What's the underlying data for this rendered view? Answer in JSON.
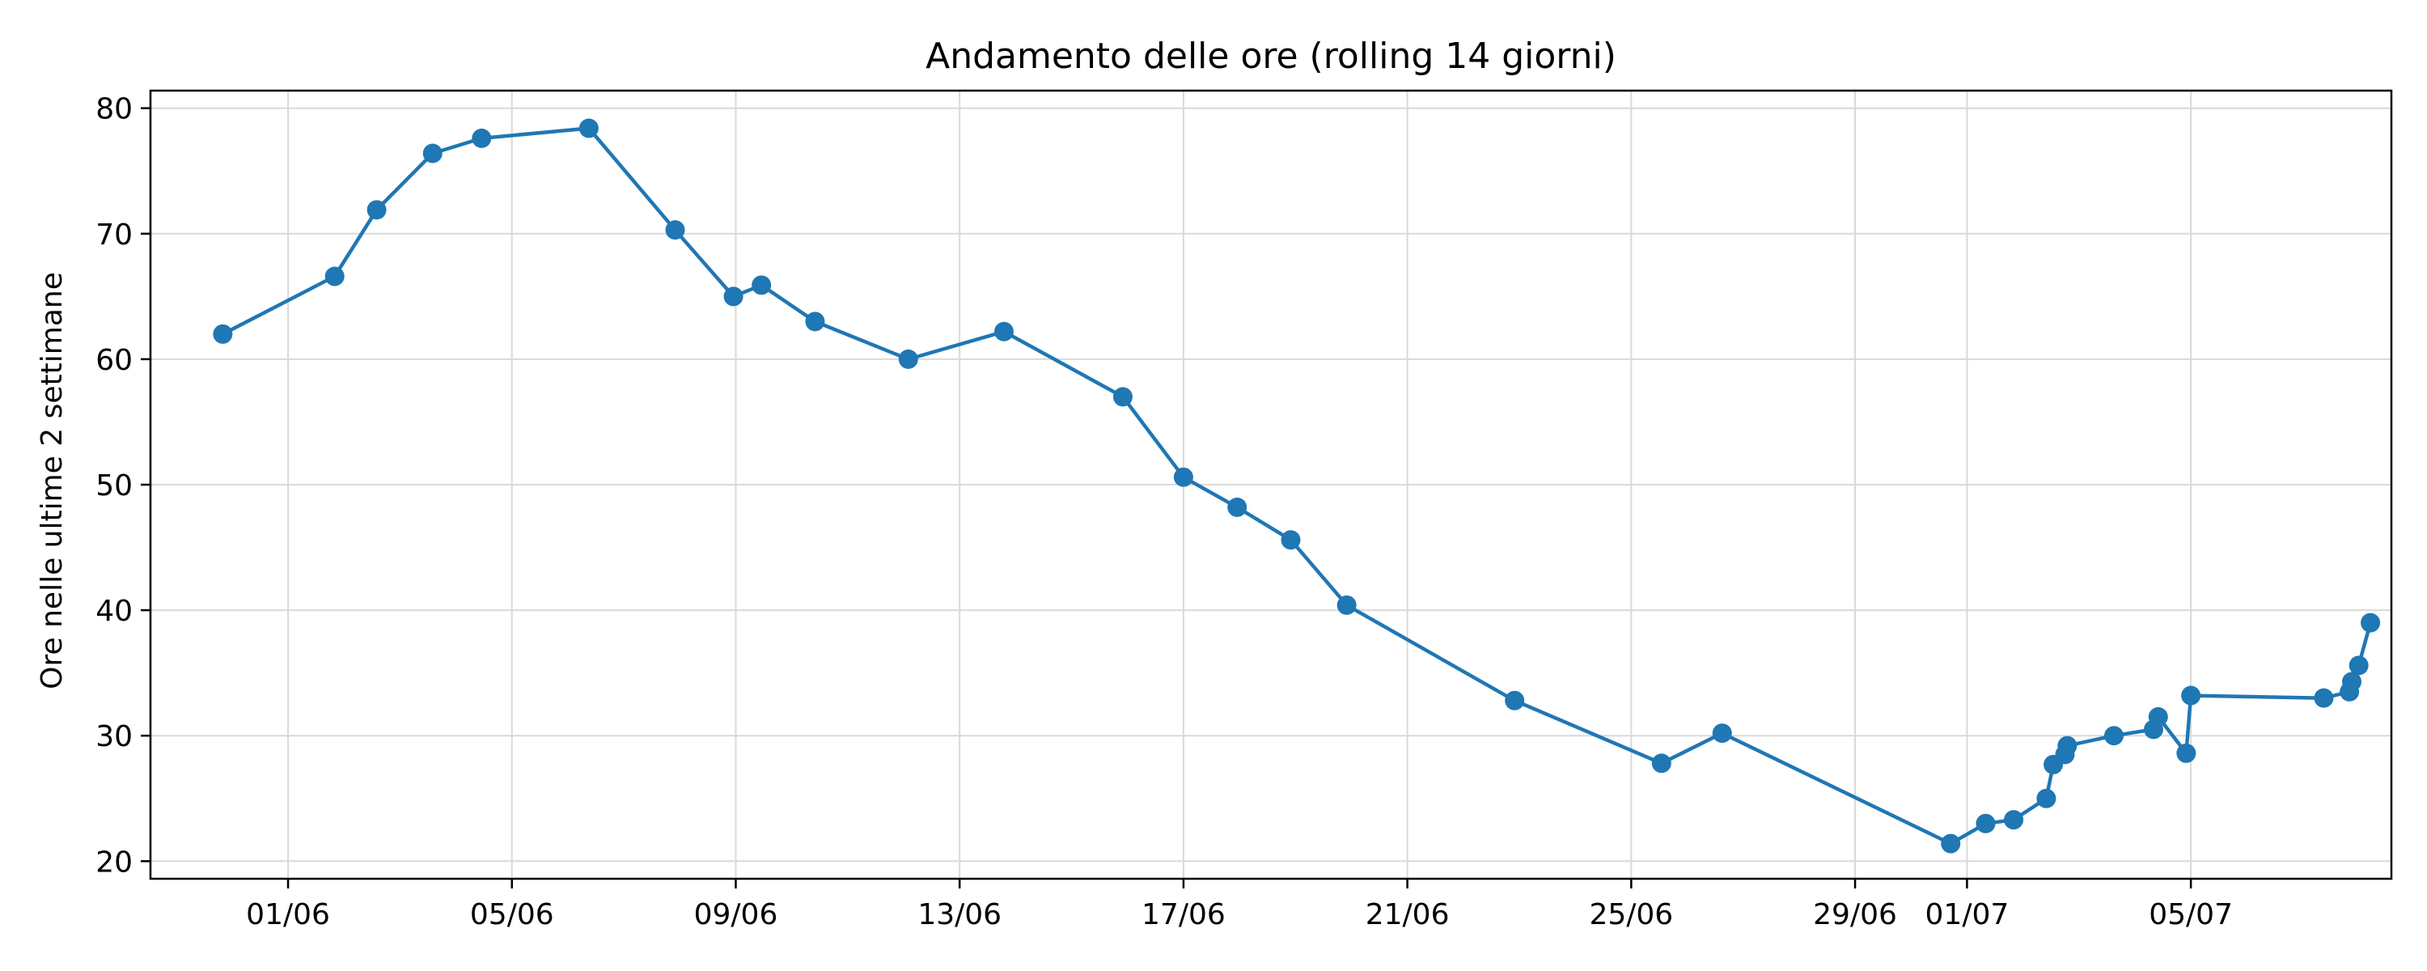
{
  "chart_data": {
    "type": "line",
    "title": "Andamento delle ore (rolling 14 giorni)",
    "xlabel": "",
    "ylabel": "Ore nelle ultime 2 settimane",
    "x_type": "date",
    "xlim": [
      "2025-05-29T13:00",
      "2025-07-08T14:00"
    ],
    "ylim": [
      18.6,
      81.4
    ],
    "grid": true,
    "color": "#1f77b4",
    "xticks": [
      {
        "date": "2025-06-01",
        "label": "01/06"
      },
      {
        "date": "2025-06-05",
        "label": "05/06"
      },
      {
        "date": "2025-06-09",
        "label": "09/06"
      },
      {
        "date": "2025-06-13",
        "label": "13/06"
      },
      {
        "date": "2025-06-17",
        "label": "17/06"
      },
      {
        "date": "2025-06-21",
        "label": "21/06"
      },
      {
        "date": "2025-06-25",
        "label": "25/06"
      },
      {
        "date": "2025-06-29",
        "label": "29/06"
      },
      {
        "date": "2025-07-01",
        "label": "01/07"
      },
      {
        "date": "2025-07-05",
        "label": "05/07"
      }
    ],
    "yticks": [
      20,
      30,
      40,
      50,
      60,
      70,
      80
    ],
    "series": [
      {
        "points": [
          {
            "x": "2025-05-30T20:00",
            "y": 62.0
          },
          {
            "x": "2025-06-01T20:00",
            "y": 66.6
          },
          {
            "x": "2025-06-02T14:00",
            "y": 71.9
          },
          {
            "x": "2025-06-03T14:00",
            "y": 76.4
          },
          {
            "x": "2025-06-04T11:00",
            "y": 77.6
          },
          {
            "x": "2025-06-06T09:00",
            "y": 78.4
          },
          {
            "x": "2025-06-07T22:00",
            "y": 70.3
          },
          {
            "x": "2025-06-08T23:00",
            "y": 65.0
          },
          {
            "x": "2025-06-09T11:00",
            "y": 65.9
          },
          {
            "x": "2025-06-10T10:00",
            "y": 63.0
          },
          {
            "x": "2025-06-12T02:00",
            "y": 60.0
          },
          {
            "x": "2025-06-13T19:00",
            "y": 62.2
          },
          {
            "x": "2025-06-15T22:00",
            "y": 57.0
          },
          {
            "x": "2025-06-17T00:00",
            "y": 50.6
          },
          {
            "x": "2025-06-17T23:00",
            "y": 48.2
          },
          {
            "x": "2025-06-18T22:00",
            "y": 45.6
          },
          {
            "x": "2025-06-19T22:00",
            "y": 40.4
          },
          {
            "x": "2025-06-22T22:00",
            "y": 32.8
          },
          {
            "x": "2025-06-25T13:00",
            "y": 27.8
          },
          {
            "x": "2025-06-26T15:00",
            "y": 30.2
          },
          {
            "x": "2025-06-30T17:00",
            "y": 21.4
          },
          {
            "x": "2025-07-01T08:00",
            "y": 23.0
          },
          {
            "x": "2025-07-01T20:00",
            "y": 23.3
          },
          {
            "x": "2025-07-02T10:00",
            "y": 25.0
          },
          {
            "x": "2025-07-02T13:00",
            "y": 27.7
          },
          {
            "x": "2025-07-02T18:00",
            "y": 28.5
          },
          {
            "x": "2025-07-02T19:00",
            "y": 29.2
          },
          {
            "x": "2025-07-03T15:00",
            "y": 30.0
          },
          {
            "x": "2025-07-04T08:00",
            "y": 30.5
          },
          {
            "x": "2025-07-04T10:00",
            "y": 31.5
          },
          {
            "x": "2025-07-04T22:00",
            "y": 28.6
          },
          {
            "x": "2025-07-05T00:00",
            "y": 33.2
          },
          {
            "x": "2025-07-07T09:00",
            "y": 33.0
          },
          {
            "x": "2025-07-07T20:00",
            "y": 33.5
          },
          {
            "x": "2025-07-07T21:00",
            "y": 34.3
          },
          {
            "x": "2025-07-08T00:00",
            "y": 35.6
          },
          {
            "x": "2025-07-08T05:00",
            "y": 39.0
          }
        ]
      }
    ]
  }
}
